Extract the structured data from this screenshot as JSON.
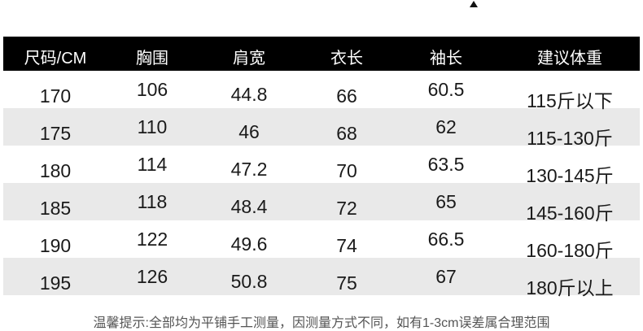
{
  "table": {
    "headers": [
      "尺码/CM",
      "胸围",
      "肩宽",
      "衣长",
      "袖长",
      "建议体重"
    ],
    "rows": [
      [
        "170",
        "106",
        "44.8",
        "66",
        "60.5",
        "115斤以下"
      ],
      [
        "175",
        "110",
        "46",
        "68",
        "62",
        "115-130斤"
      ],
      [
        "180",
        "114",
        "47.2",
        "70",
        "63.5",
        "130-145斤"
      ],
      [
        "185",
        "118",
        "48.4",
        "72",
        "65",
        "145-160斤"
      ],
      [
        "190",
        "122",
        "49.6",
        "74",
        "66.5",
        "160-180斤"
      ],
      [
        "195",
        "126",
        "50.8",
        "75",
        "67",
        "180斤以上"
      ]
    ]
  },
  "note": "温馨提示:全部均为平铺手工测量，因测量方式不同，如有1-3cm误差属合理范围",
  "colors": {
    "header_bg": "#000000",
    "alt_row_bg": "#e9e9e9"
  }
}
